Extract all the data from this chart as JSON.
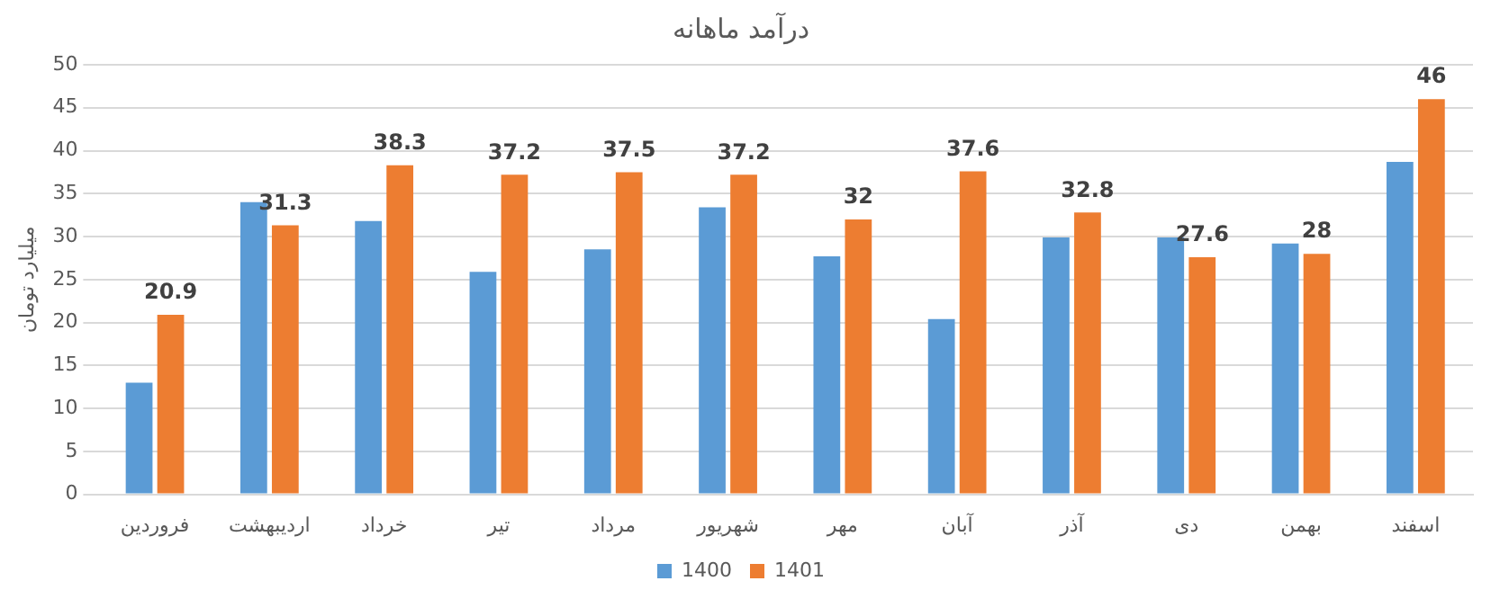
{
  "chart_data": {
    "type": "bar",
    "title": "درآمد ماهانه",
    "ylabel": "میلیارد تومان",
    "categories": [
      "فروردین",
      "اردیبهشت",
      "خرداد",
      "تیر",
      "مرداد",
      "شهریور",
      "مهر",
      "آبان",
      "آذر",
      "دی",
      "بهمن",
      "اسفند"
    ],
    "series": [
      {
        "name": "1400",
        "color": "#5b9bd5",
        "values": [
          13.0,
          34.0,
          31.8,
          25.9,
          28.5,
          33.4,
          27.7,
          20.4,
          29.9,
          29.9,
          29.2,
          38.7
        ]
      },
      {
        "name": "1401",
        "color": "#ed7d31",
        "values": [
          20.9,
          31.3,
          38.3,
          37.2,
          37.5,
          37.2,
          32,
          37.6,
          32.8,
          27.6,
          28,
          46
        ],
        "value_labels": [
          "20.9",
          "31.3",
          "38.3",
          "37.2",
          "37.5",
          "37.2",
          "32",
          "37.6",
          "32.8",
          "27.6",
          "28",
          "46"
        ]
      }
    ],
    "ylim": [
      0,
      50
    ],
    "yticks": [
      0,
      5,
      10,
      15,
      20,
      25,
      30,
      35,
      40,
      45,
      50
    ],
    "grid": "y",
    "legend": "bottom"
  }
}
